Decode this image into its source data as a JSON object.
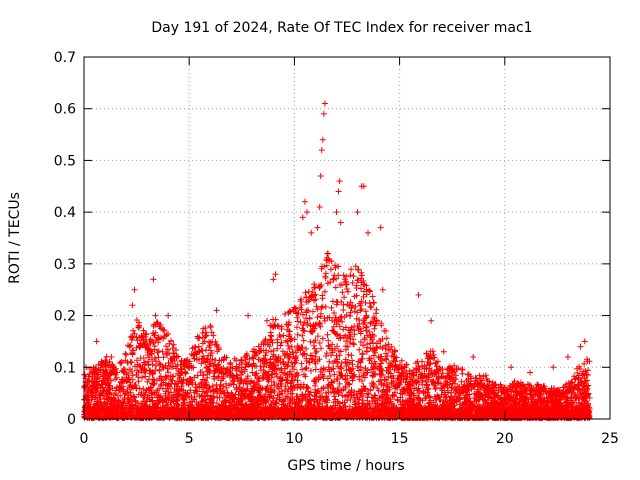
{
  "chart_data": {
    "type": "scatter",
    "title": "Day 191 of 2024, Rate Of TEC Index for receiver mac1",
    "xlabel": "GPS time / hours",
    "ylabel": "ROTI / TECUs",
    "xlim": [
      0,
      25
    ],
    "ylim": [
      0,
      0.7
    ],
    "x_ticks": [
      0,
      5,
      10,
      15,
      20,
      25
    ],
    "y_ticks": [
      0,
      0.1,
      0.2,
      0.3,
      0.4,
      0.5,
      0.6,
      0.7
    ],
    "x_tick_labels": [
      "0",
      "5",
      "10",
      "15",
      "20",
      "25"
    ],
    "y_tick_labels": [
      "0",
      "0.1",
      "0.2",
      "0.3",
      "0.4",
      "0.5",
      "0.6",
      "0.7"
    ],
    "grid": true,
    "marker": "plus",
    "series_color": "#ff0000",
    "envelope": [
      [
        0.0,
        0.09
      ],
      [
        0.5,
        0.1
      ],
      [
        1.0,
        0.12
      ],
      [
        1.5,
        0.1
      ],
      [
        2.0,
        0.13
      ],
      [
        2.5,
        0.2
      ],
      [
        3.0,
        0.16
      ],
      [
        3.5,
        0.2
      ],
      [
        4.0,
        0.17
      ],
      [
        4.5,
        0.12
      ],
      [
        5.0,
        0.12
      ],
      [
        5.5,
        0.17
      ],
      [
        6.0,
        0.18
      ],
      [
        6.5,
        0.13
      ],
      [
        7.0,
        0.11
      ],
      [
        7.5,
        0.12
      ],
      [
        8.0,
        0.13
      ],
      [
        8.5,
        0.15
      ],
      [
        9.0,
        0.2
      ],
      [
        9.5,
        0.2
      ],
      [
        10.0,
        0.22
      ],
      [
        10.5,
        0.26
      ],
      [
        11.0,
        0.27
      ],
      [
        11.5,
        0.32
      ],
      [
        12.0,
        0.3
      ],
      [
        12.5,
        0.28
      ],
      [
        13.0,
        0.3
      ],
      [
        13.5,
        0.27
      ],
      [
        14.0,
        0.2
      ],
      [
        14.5,
        0.16
      ],
      [
        15.0,
        0.12
      ],
      [
        15.5,
        0.1
      ],
      [
        16.0,
        0.12
      ],
      [
        16.5,
        0.14
      ],
      [
        17.0,
        0.1
      ],
      [
        17.5,
        0.1
      ],
      [
        18.0,
        0.1
      ],
      [
        18.5,
        0.08
      ],
      [
        19.0,
        0.09
      ],
      [
        19.5,
        0.07
      ],
      [
        20.0,
        0.06
      ],
      [
        20.5,
        0.07
      ],
      [
        21.0,
        0.07
      ],
      [
        21.5,
        0.07
      ],
      [
        22.0,
        0.06
      ],
      [
        22.5,
        0.06
      ],
      [
        23.0,
        0.07
      ],
      [
        23.5,
        0.1
      ],
      [
        24.0,
        0.12
      ]
    ],
    "outliers": [
      [
        0.1,
        0.1
      ],
      [
        0.6,
        0.15
      ],
      [
        1.3,
        0.12
      ],
      [
        2.3,
        0.22
      ],
      [
        2.4,
        0.25
      ],
      [
        3.3,
        0.27
      ],
      [
        3.4,
        0.2
      ],
      [
        4.0,
        0.2
      ],
      [
        6.0,
        0.18
      ],
      [
        6.3,
        0.21
      ],
      [
        7.8,
        0.2
      ],
      [
        8.7,
        0.19
      ],
      [
        9.0,
        0.27
      ],
      [
        9.1,
        0.28
      ],
      [
        10.4,
        0.39
      ],
      [
        10.5,
        0.42
      ],
      [
        10.6,
        0.4
      ],
      [
        10.8,
        0.36
      ],
      [
        11.1,
        0.37
      ],
      [
        11.2,
        0.41
      ],
      [
        11.25,
        0.47
      ],
      [
        11.3,
        0.52
      ],
      [
        11.35,
        0.54
      ],
      [
        11.4,
        0.59
      ],
      [
        11.45,
        0.61
      ],
      [
        11.6,
        0.32
      ],
      [
        12.0,
        0.4
      ],
      [
        12.1,
        0.44
      ],
      [
        12.15,
        0.46
      ],
      [
        12.2,
        0.38
      ],
      [
        13.0,
        0.4
      ],
      [
        13.2,
        0.45
      ],
      [
        13.3,
        0.45
      ],
      [
        13.5,
        0.36
      ],
      [
        14.1,
        0.37
      ],
      [
        14.2,
        0.25
      ],
      [
        15.9,
        0.24
      ],
      [
        16.5,
        0.19
      ],
      [
        17.1,
        0.13
      ],
      [
        18.5,
        0.12
      ],
      [
        20.3,
        0.1
      ],
      [
        21.2,
        0.09
      ],
      [
        22.3,
        0.1
      ],
      [
        23.0,
        0.12
      ],
      [
        23.6,
        0.14
      ],
      [
        23.8,
        0.15
      ]
    ]
  }
}
